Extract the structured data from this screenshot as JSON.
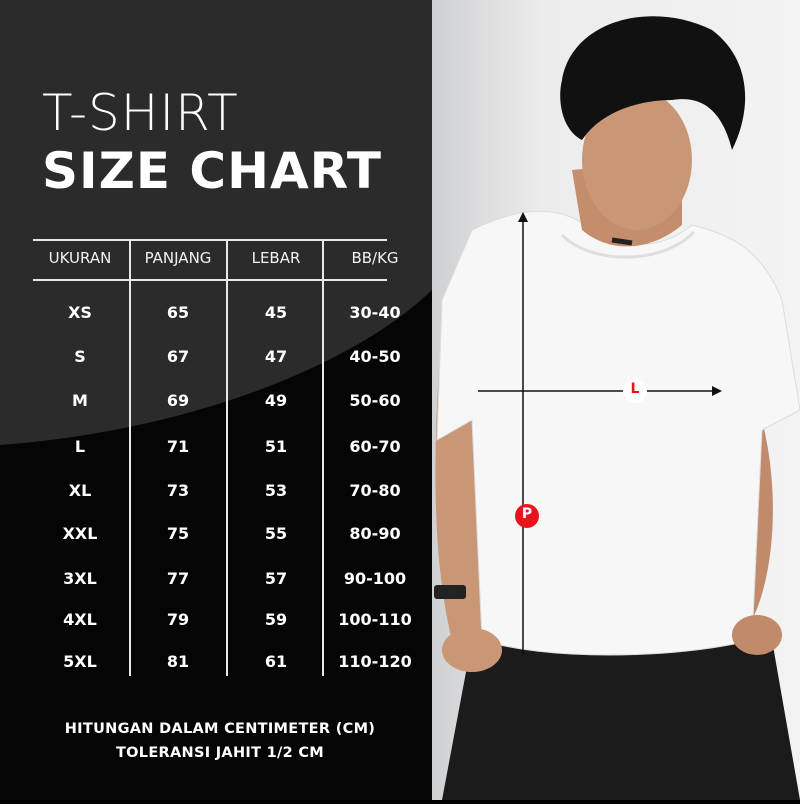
{
  "title": {
    "line1": "T-SHIRT",
    "line2": "SIZE CHART"
  },
  "table": {
    "headers": [
      "UKURAN",
      "PANJANG",
      "LEBAR",
      "BB/KG"
    ],
    "rows": [
      [
        "XS",
        "65",
        "45",
        "30-40"
      ],
      [
        "S",
        "67",
        "47",
        "40-50"
      ],
      [
        "M",
        "69",
        "49",
        "50-60"
      ],
      [
        "L",
        "71",
        "51",
        "60-70"
      ],
      [
        "XL",
        "73",
        "53",
        "70-80"
      ],
      [
        "XXL",
        "75",
        "55",
        "80-90"
      ],
      [
        "3XL",
        "77",
        "57",
        "90-100"
      ],
      [
        "4XL",
        "79",
        "59",
        "100-110"
      ],
      [
        "5XL",
        "81",
        "61",
        "110-120"
      ]
    ]
  },
  "footer": {
    "line1": "HITUNGAN DALAM CENTIMETER (CM)",
    "line2": "TOLERANSI JAHIT 1/2 CM"
  },
  "markers": {
    "length_label": "P",
    "width_label": "L"
  },
  "colors": {
    "panel_dark": "#2b2b2b",
    "panel_black": "#050505",
    "marker_red": "#e8141b"
  }
}
